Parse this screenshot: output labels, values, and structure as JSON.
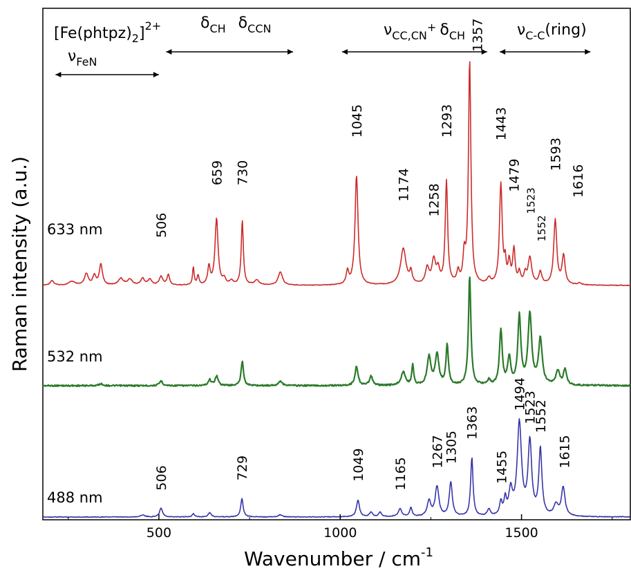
{
  "chart_data": {
    "type": "line",
    "title": "",
    "xlabel": "Wavenumber /  cm",
    "xlabel_sup": "-1",
    "ylabel": "Raman intensity (a.u.)",
    "xlim": [
      180,
      1800
    ],
    "xticks": [
      500,
      1000,
      1500
    ],
    "y_ticks_shown": false,
    "grid": false,
    "compound": {
      "base": "[Fe(phtpz)",
      "sub": "2",
      "close": "]",
      "sup": "2+"
    },
    "annotations": [
      {
        "greek": "ν",
        "sub": "FeN",
        "range": [
          215,
          500
        ]
      },
      {
        "greek": "δ",
        "sub": "CH",
        "text2_greek": "δ",
        "text2_sub": "CCN",
        "range": [
          520,
          870
        ]
      },
      {
        "greek": "ν",
        "sub": "CC,CN",
        "plus": "+ ",
        "text2_greek": "δ",
        "text2_sub": "CH",
        "range": [
          1005,
          1405
        ]
      },
      {
        "greek": "ν",
        "sub": "C-C",
        "tail": "(ring)",
        "range": [
          1440,
          1690
        ]
      }
    ],
    "series": [
      {
        "name": "633 nm",
        "color": "#cc2a2a",
        "baseline": 0.0,
        "peaks": [
          {
            "x": 205,
            "h": 0.05,
            "w": 6
          },
          {
            "x": 260,
            "h": 0.04,
            "w": 10
          },
          {
            "x": 300,
            "h": 0.12,
            "w": 6
          },
          {
            "x": 322,
            "h": 0.1,
            "w": 5
          },
          {
            "x": 340,
            "h": 0.22,
            "w": 5
          },
          {
            "x": 395,
            "h": 0.07,
            "w": 8
          },
          {
            "x": 420,
            "h": 0.06,
            "w": 8
          },
          {
            "x": 455,
            "h": 0.07,
            "w": 6
          },
          {
            "x": 475,
            "h": 0.06,
            "w": 6
          },
          {
            "x": 506,
            "h": 0.09,
            "w": 6
          },
          {
            "x": 526,
            "h": 0.11,
            "w": 4
          },
          {
            "x": 595,
            "h": 0.19,
            "w": 2.5
          },
          {
            "x": 608,
            "h": 0.1,
            "w": 3
          },
          {
            "x": 638,
            "h": 0.19,
            "w": 4
          },
          {
            "x": 659,
            "h": 0.7,
            "w": 5
          },
          {
            "x": 680,
            "h": 0.06,
            "w": 5
          },
          {
            "x": 700,
            "h": 0.04,
            "w": 6
          },
          {
            "x": 730,
            "h": 0.68,
            "w": 3.5
          },
          {
            "x": 770,
            "h": 0.05,
            "w": 8
          },
          {
            "x": 835,
            "h": 0.14,
            "w": 7
          },
          {
            "x": 1020,
            "h": 0.14,
            "w": 4
          },
          {
            "x": 1045,
            "h": 1.15,
            "w": 5
          },
          {
            "x": 1174,
            "h": 0.38,
            "w": 9
          },
          {
            "x": 1195,
            "h": 0.12,
            "w": 4
          },
          {
            "x": 1240,
            "h": 0.17,
            "w": 6
          },
          {
            "x": 1258,
            "h": 0.25,
            "w": 6
          },
          {
            "x": 1270,
            "h": 0.14,
            "w": 5
          },
          {
            "x": 1293,
            "h": 1.08,
            "w": 4
          },
          {
            "x": 1325,
            "h": 0.12,
            "w": 4
          },
          {
            "x": 1342,
            "h": 0.28,
            "w": 4
          },
          {
            "x": 1357,
            "h": 2.35,
            "w": 4
          },
          {
            "x": 1410,
            "h": 0.06,
            "w": 5
          },
          {
            "x": 1443,
            "h": 1.05,
            "w": 4.5
          },
          {
            "x": 1455,
            "h": 0.2,
            "w": 3
          },
          {
            "x": 1466,
            "h": 0.22,
            "w": 4
          },
          {
            "x": 1479,
            "h": 0.36,
            "w": 4
          },
          {
            "x": 1494,
            "h": 0.12,
            "w": 4
          },
          {
            "x": 1510,
            "h": 0.1,
            "w": 4
          },
          {
            "x": 1523,
            "h": 0.28,
            "w": 6
          },
          {
            "x": 1552,
            "h": 0.13,
            "w": 5
          },
          {
            "x": 1593,
            "h": 0.68,
            "w": 5
          },
          {
            "x": 1616,
            "h": 0.3,
            "w": 5
          },
          {
            "x": 1660,
            "h": 0.02,
            "w": 6
          }
        ],
        "peak_labels": [
          {
            "x": 506,
            "text": "506",
            "y_top": 0.5
          },
          {
            "x": 659,
            "text": "659",
            "y_top": 1.05
          },
          {
            "x": 730,
            "text": "730",
            "y_top": 1.05
          },
          {
            "x": 1045,
            "text": "1045",
            "y_top": 1.55
          },
          {
            "x": 1174,
            "text": "1174",
            "y_top": 0.88
          },
          {
            "x": 1258,
            "text": "1258",
            "y_top": 0.72
          },
          {
            "x": 1293,
            "text": "1293",
            "y_top": 1.55
          },
          {
            "x": 1378,
            "text": "1357",
            "y_top": 2.45
          },
          {
            "x": 1443,
            "text": "1443",
            "y_top": 1.52
          },
          {
            "x": 1479,
            "text": "1479",
            "y_top": 0.98
          },
          {
            "x": 1523,
            "text": "1523",
            "y_top": 0.75,
            "small": true
          },
          {
            "x": 1552,
            "text": "1552",
            "y_top": 0.46,
            "small": true
          },
          {
            "x": 1593,
            "text": "1593",
            "y_top": 1.2
          },
          {
            "x": 1655,
            "text": "1616",
            "y_top": 0.92
          }
        ]
      },
      {
        "name": "532 nm",
        "color": "#2b7a2b",
        "baseline": 0.0,
        "peaks": [
          {
            "x": 340,
            "h": 0.02,
            "w": 6
          },
          {
            "x": 506,
            "h": 0.05,
            "w": 5
          },
          {
            "x": 640,
            "h": 0.06,
            "w": 5
          },
          {
            "x": 659,
            "h": 0.1,
            "w": 5
          },
          {
            "x": 730,
            "h": 0.26,
            "w": 4
          },
          {
            "x": 835,
            "h": 0.05,
            "w": 6
          },
          {
            "x": 1045,
            "h": 0.2,
            "w": 5
          },
          {
            "x": 1085,
            "h": 0.1,
            "w": 5
          },
          {
            "x": 1174,
            "h": 0.14,
            "w": 7
          },
          {
            "x": 1200,
            "h": 0.22,
            "w": 3
          },
          {
            "x": 1245,
            "h": 0.3,
            "w": 6
          },
          {
            "x": 1267,
            "h": 0.32,
            "w": 6
          },
          {
            "x": 1295,
            "h": 0.42,
            "w": 4
          },
          {
            "x": 1357,
            "h": 1.15,
            "w": 4
          },
          {
            "x": 1410,
            "h": 0.05,
            "w": 5
          },
          {
            "x": 1443,
            "h": 0.58,
            "w": 4.5
          },
          {
            "x": 1466,
            "h": 0.28,
            "w": 5
          },
          {
            "x": 1494,
            "h": 0.72,
            "w": 5
          },
          {
            "x": 1523,
            "h": 0.74,
            "w": 6
          },
          {
            "x": 1552,
            "h": 0.48,
            "w": 6
          },
          {
            "x": 1600,
            "h": 0.15,
            "w": 6
          },
          {
            "x": 1620,
            "h": 0.17,
            "w": 5
          }
        ],
        "peak_labels": []
      },
      {
        "name": "488 nm",
        "color": "#3535a8",
        "baseline": 0.0,
        "peaks": [
          {
            "x": 455,
            "h": 0.02,
            "w": 6
          },
          {
            "x": 506,
            "h": 0.08,
            "w": 5
          },
          {
            "x": 595,
            "h": 0.03,
            "w": 4
          },
          {
            "x": 640,
            "h": 0.04,
            "w": 5
          },
          {
            "x": 729,
            "h": 0.17,
            "w": 4
          },
          {
            "x": 835,
            "h": 0.02,
            "w": 6
          },
          {
            "x": 1049,
            "h": 0.15,
            "w": 5
          },
          {
            "x": 1085,
            "h": 0.04,
            "w": 5
          },
          {
            "x": 1110,
            "h": 0.04,
            "w": 5
          },
          {
            "x": 1165,
            "h": 0.07,
            "w": 6
          },
          {
            "x": 1195,
            "h": 0.08,
            "w": 4
          },
          {
            "x": 1245,
            "h": 0.14,
            "w": 6
          },
          {
            "x": 1267,
            "h": 0.27,
            "w": 6
          },
          {
            "x": 1305,
            "h": 0.31,
            "w": 5
          },
          {
            "x": 1363,
            "h": 0.53,
            "w": 4
          },
          {
            "x": 1410,
            "h": 0.06,
            "w": 5
          },
          {
            "x": 1443,
            "h": 0.12,
            "w": 4
          },
          {
            "x": 1455,
            "h": 0.14,
            "w": 4
          },
          {
            "x": 1470,
            "h": 0.22,
            "w": 6
          },
          {
            "x": 1494,
            "h": 0.84,
            "w": 7
          },
          {
            "x": 1523,
            "h": 0.66,
            "w": 6
          },
          {
            "x": 1552,
            "h": 0.6,
            "w": 5
          },
          {
            "x": 1595,
            "h": 0.1,
            "w": 7
          },
          {
            "x": 1615,
            "h": 0.26,
            "w": 6
          }
        ],
        "peak_labels": [
          {
            "x": 506,
            "text": "506",
            "y_top": 0.24
          },
          {
            "x": 729,
            "text": "729",
            "y_top": 0.33
          },
          {
            "x": 1049,
            "text": "1049",
            "y_top": 0.32
          },
          {
            "x": 1165,
            "text": "1165",
            "y_top": 0.24
          },
          {
            "x": 1267,
            "text": "1267",
            "y_top": 0.44
          },
          {
            "x": 1305,
            "text": "1305",
            "y_top": 0.48
          },
          {
            "x": 1363,
            "text": "1363",
            "y_top": 0.7
          },
          {
            "x": 1445,
            "text": "1455",
            "y_top": 0.3
          },
          {
            "x": 1494,
            "text": "1494",
            "y_top": 0.96
          },
          {
            "x": 1523,
            "text": "1523",
            "y_top": 0.84
          },
          {
            "x": 1552,
            "text": "1552",
            "y_top": 0.76
          },
          {
            "x": 1618,
            "text": "1615",
            "y_top": 0.44
          }
        ]
      }
    ]
  }
}
